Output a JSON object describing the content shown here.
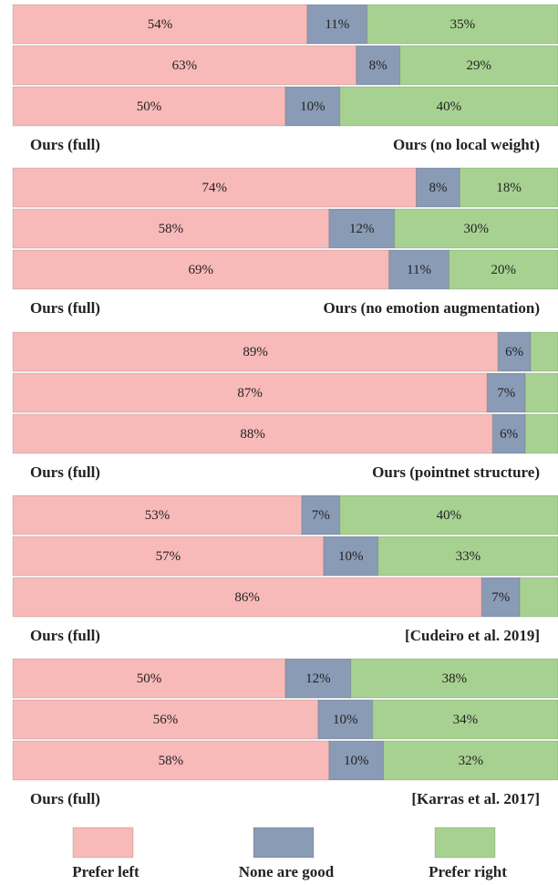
{
  "chart_data": [
    {
      "type": "bar",
      "orientation": "horizontal",
      "stacked": true,
      "xlim": [
        0,
        100
      ],
      "left_label": "Ours (full)",
      "right_label": "Ours (no local weight)",
      "series": [
        {
          "color": "#f8b9b9",
          "values": [
            54,
            63,
            50
          ],
          "value_labels": [
            "54%",
            "63%",
            "50%"
          ]
        },
        {
          "color": "#8a9bb6",
          "values": [
            11,
            8,
            10
          ],
          "value_labels": [
            "11%",
            "8%",
            "10%"
          ]
        },
        {
          "color": "#a7d190",
          "values": [
            35,
            29,
            40
          ],
          "value_labels": [
            "35%",
            "29%",
            "40%"
          ]
        }
      ]
    },
    {
      "type": "bar",
      "orientation": "horizontal",
      "stacked": true,
      "xlim": [
        0,
        100
      ],
      "left_label": "Ours (full)",
      "right_label": "Ours (no emotion augmentation)",
      "series": [
        {
          "color": "#f8b9b9",
          "values": [
            74,
            58,
            69
          ],
          "value_labels": [
            "74%",
            "58%",
            "69%"
          ]
        },
        {
          "color": "#8a9bb6",
          "values": [
            8,
            12,
            11
          ],
          "value_labels": [
            "8%",
            "12%",
            "11%"
          ]
        },
        {
          "color": "#a7d190",
          "values": [
            18,
            30,
            20
          ],
          "value_labels": [
            "18%",
            "30%",
            "20%"
          ]
        }
      ]
    },
    {
      "type": "bar",
      "orientation": "horizontal",
      "stacked": true,
      "xlim": [
        0,
        100
      ],
      "left_label": "Ours (full)",
      "right_label": "Ours (pointnet structure)",
      "series": [
        {
          "color": "#f8b9b9",
          "values": [
            89,
            87,
            88
          ],
          "value_labels": [
            "89%",
            "87%",
            "88%"
          ]
        },
        {
          "color": "#8a9bb6",
          "values": [
            6,
            7,
            6
          ],
          "value_labels": [
            "6%",
            "7%",
            "6%"
          ]
        },
        {
          "color": "#a7d190",
          "values": [
            5,
            6,
            6
          ],
          "value_labels": [
            null,
            null,
            null
          ]
        }
      ]
    },
    {
      "type": "bar",
      "orientation": "horizontal",
      "stacked": true,
      "xlim": [
        0,
        100
      ],
      "left_label": "Ours (full)",
      "right_label": "[Cudeiro et al. 2019]",
      "series": [
        {
          "color": "#f8b9b9",
          "values": [
            53,
            57,
            86
          ],
          "value_labels": [
            "53%",
            "57%",
            "86%"
          ]
        },
        {
          "color": "#8a9bb6",
          "values": [
            7,
            10,
            7
          ],
          "value_labels": [
            "7%",
            "10%",
            "7%"
          ]
        },
        {
          "color": "#a7d190",
          "values": [
            40,
            33,
            7
          ],
          "value_labels": [
            "40%",
            "33%",
            null
          ]
        }
      ]
    },
    {
      "type": "bar",
      "orientation": "horizontal",
      "stacked": true,
      "xlim": [
        0,
        100
      ],
      "left_label": "Ours (full)",
      "right_label": "[Karras et al. 2017]",
      "series": [
        {
          "color": "#f8b9b9",
          "values": [
            50,
            56,
            58
          ],
          "value_labels": [
            "50%",
            "56%",
            "58%"
          ]
        },
        {
          "color": "#8a9bb6",
          "values": [
            12,
            10,
            10
          ],
          "value_labels": [
            "12%",
            "10%",
            "10%"
          ]
        },
        {
          "color": "#a7d190",
          "values": [
            38,
            34,
            32
          ],
          "value_labels": [
            "38%",
            "34%",
            "32%"
          ]
        }
      ]
    }
  ],
  "legend": [
    {
      "name": "Prefer left",
      "color": "#f8b9b9"
    },
    {
      "name": "None are good",
      "color": "#8a9bb6"
    },
    {
      "name": "Prefer right",
      "color": "#a7d190"
    }
  ]
}
